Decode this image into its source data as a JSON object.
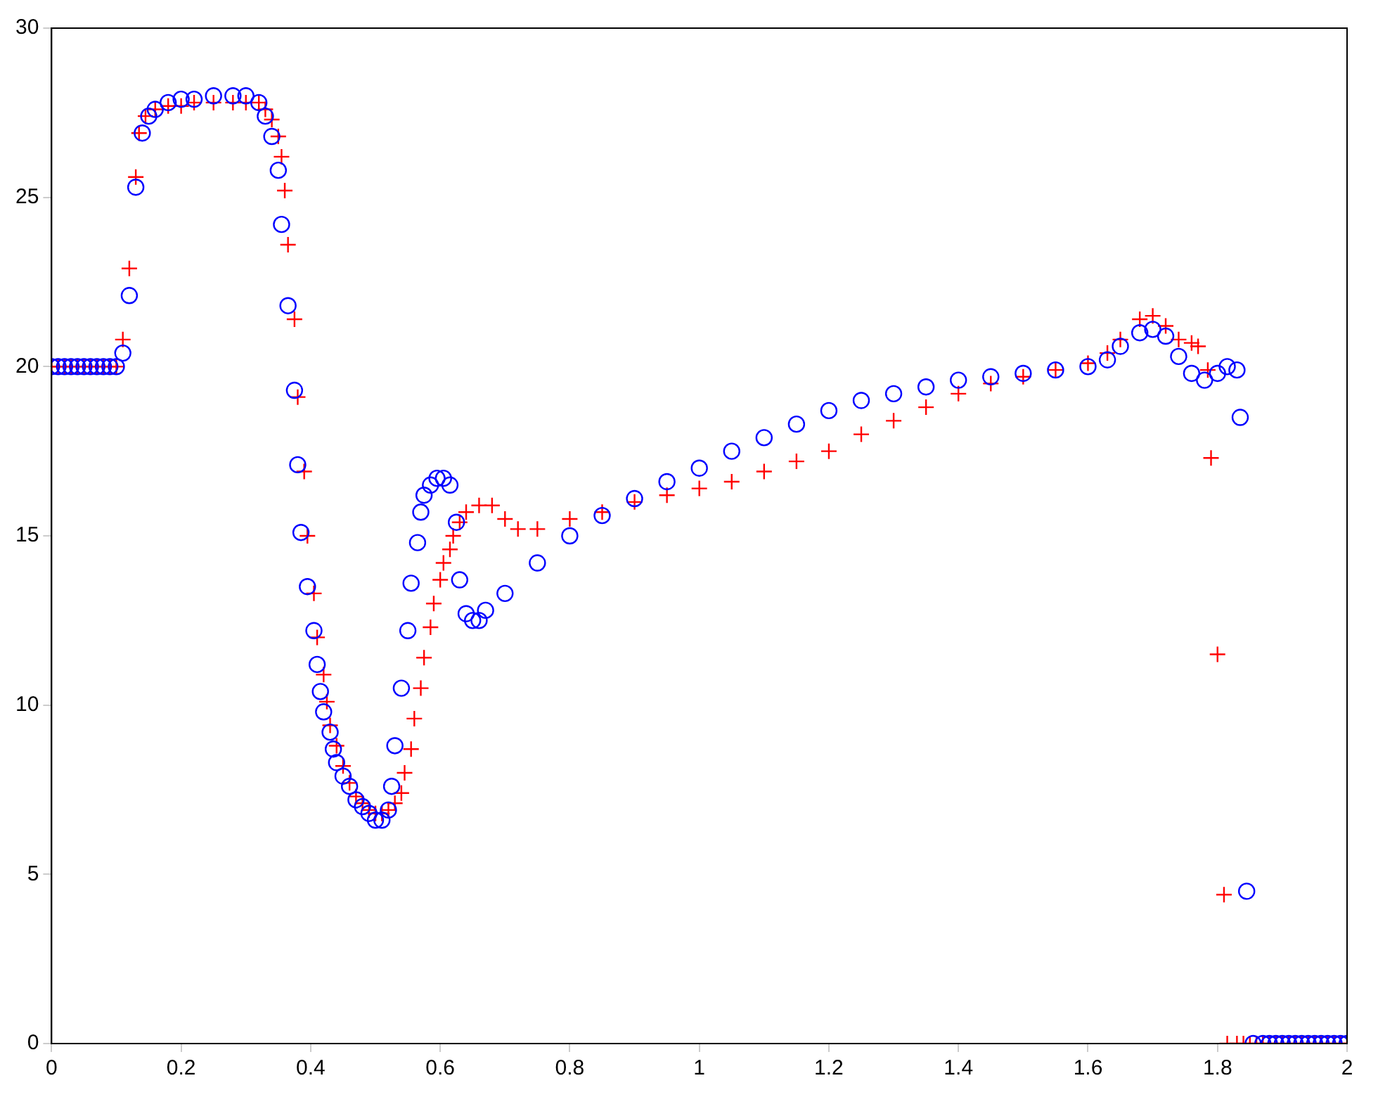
{
  "chart_data": {
    "type": "scatter",
    "xlim": [
      0,
      2
    ],
    "ylim": [
      0,
      30
    ],
    "xticks": [
      0,
      0.2,
      0.4,
      0.6,
      0.8,
      1,
      1.2,
      1.4,
      1.6,
      1.8,
      2
    ],
    "yticks": [
      0,
      5,
      10,
      15,
      20,
      25,
      30
    ],
    "grid": false,
    "legend": false,
    "series": [
      {
        "color": "#0000ff",
        "marker": "circle",
        "x": [
          0,
          0.01,
          0.02,
          0.03,
          0.04,
          0.05,
          0.06,
          0.07,
          0.08,
          0.09,
          0.1,
          0.11,
          0.12,
          0.13,
          0.14,
          0.15,
          0.16,
          0.18,
          0.2,
          0.22,
          0.25,
          0.28,
          0.3,
          0.32,
          0.33,
          0.34,
          0.35,
          0.355,
          0.365,
          0.375,
          0.38,
          0.385,
          0.395,
          0.405,
          0.41,
          0.415,
          0.42,
          0.43,
          0.435,
          0.44,
          0.45,
          0.46,
          0.47,
          0.48,
          0.49,
          0.5,
          0.51,
          0.52,
          0.525,
          0.53,
          0.54,
          0.55,
          0.555,
          0.565,
          0.57,
          0.575,
          0.585,
          0.595,
          0.605,
          0.615,
          0.625,
          0.63,
          0.64,
          0.65,
          0.66,
          0.67,
          0.7,
          0.75,
          0.8,
          0.85,
          0.9,
          0.95,
          1,
          1.05,
          1.1,
          1.15,
          1.2,
          1.25,
          1.3,
          1.35,
          1.4,
          1.45,
          1.5,
          1.55,
          1.6,
          1.63,
          1.65,
          1.68,
          1.7,
          1.72,
          1.74,
          1.76,
          1.78,
          1.8,
          1.815,
          1.83,
          1.835,
          1.845,
          1.855,
          1.87,
          1.88,
          1.89,
          1.9,
          1.91,
          1.92,
          1.93,
          1.94,
          1.95,
          1.96,
          1.97,
          1.98,
          1.99,
          2
        ],
        "values": [
          20,
          20,
          20,
          20,
          20,
          20,
          20,
          20,
          20,
          20,
          20,
          20.4,
          22.1,
          25.3,
          26.9,
          27.4,
          27.6,
          27.8,
          27.9,
          27.9,
          28,
          28,
          28,
          27.8,
          27.4,
          26.8,
          25.8,
          24.2,
          21.8,
          19.3,
          17.1,
          15.1,
          13.5,
          12.2,
          11.2,
          10.4,
          9.8,
          9.2,
          8.7,
          8.3,
          7.9,
          7.6,
          7.2,
          7,
          6.8,
          6.6,
          6.6,
          6.9,
          7.6,
          8.8,
          10.5,
          12.2,
          13.6,
          14.8,
          15.7,
          16.2,
          16.5,
          16.7,
          16.7,
          16.5,
          15.4,
          13.7,
          12.7,
          12.5,
          12.5,
          12.8,
          13.3,
          14.2,
          15,
          15.6,
          16.1,
          16.6,
          17,
          17.5,
          17.9,
          18.3,
          18.7,
          19,
          19.2,
          19.4,
          19.6,
          19.7,
          19.8,
          19.9,
          20,
          20.2,
          20.6,
          21,
          21.1,
          20.9,
          20.3,
          19.8,
          19.6,
          19.8,
          20,
          19.9,
          18.5,
          4.5,
          0,
          0,
          0,
          0,
          0,
          0,
          0,
          0,
          0,
          0,
          0,
          0,
          0,
          0,
          0
        ]
      },
      {
        "color": "#ff0000",
        "marker": "cross",
        "x": [
          0,
          0.01,
          0.02,
          0.03,
          0.04,
          0.05,
          0.06,
          0.07,
          0.08,
          0.09,
          0.1,
          0.11,
          0.12,
          0.13,
          0.135,
          0.145,
          0.16,
          0.18,
          0.2,
          0.22,
          0.25,
          0.28,
          0.3,
          0.32,
          0.33,
          0.34,
          0.35,
          0.355,
          0.36,
          0.365,
          0.375,
          0.38,
          0.39,
          0.395,
          0.405,
          0.41,
          0.42,
          0.425,
          0.43,
          0.44,
          0.45,
          0.46,
          0.47,
          0.48,
          0.49,
          0.5,
          0.51,
          0.52,
          0.53,
          0.54,
          0.545,
          0.555,
          0.56,
          0.57,
          0.575,
          0.585,
          0.59,
          0.6,
          0.605,
          0.615,
          0.62,
          0.63,
          0.64,
          0.66,
          0.68,
          0.7,
          0.72,
          0.75,
          0.8,
          0.85,
          0.9,
          0.95,
          1,
          1.05,
          1.1,
          1.15,
          1.2,
          1.25,
          1.3,
          1.35,
          1.4,
          1.45,
          1.5,
          1.55,
          1.6,
          1.63,
          1.65,
          1.68,
          1.7,
          1.72,
          1.74,
          1.76,
          1.77,
          1.785,
          1.79,
          1.8,
          1.81,
          1.815,
          1.83,
          1.84,
          1.85,
          1.86,
          1.87,
          1.88,
          1.89,
          1.9,
          1.91,
          1.92,
          1.93,
          1.94,
          1.95,
          1.96,
          1.97,
          1.98,
          1.99,
          2
        ],
        "values": [
          20,
          20,
          20,
          20,
          20,
          20,
          20,
          20,
          20,
          20,
          20,
          20.8,
          22.9,
          25.6,
          26.9,
          27.4,
          27.6,
          27.7,
          27.7,
          27.8,
          27.8,
          27.8,
          27.8,
          27.8,
          27.6,
          27.3,
          26.8,
          26.2,
          25.2,
          23.6,
          21.4,
          19.1,
          16.9,
          15,
          13.3,
          12,
          10.9,
          10.1,
          9.4,
          8.8,
          8.2,
          7.7,
          7.3,
          7.1,
          6.9,
          6.8,
          6.8,
          6.9,
          7.1,
          7.4,
          8,
          8.7,
          9.6,
          10.5,
          11.4,
          12.3,
          13,
          13.7,
          14.2,
          14.6,
          15,
          15.4,
          15.7,
          15.9,
          15.9,
          15.5,
          15.2,
          15.2,
          15.5,
          15.7,
          16,
          16.2,
          16.4,
          16.6,
          16.9,
          17.2,
          17.5,
          18,
          18.4,
          18.8,
          19.2,
          19.5,
          19.7,
          19.9,
          20.1,
          20.4,
          20.8,
          21.4,
          21.5,
          21.2,
          20.8,
          20.7,
          20.6,
          19.9,
          17.3,
          11.5,
          4.4,
          0,
          0,
          0,
          0,
          0,
          0,
          0,
          0,
          0,
          0,
          0,
          0,
          0,
          0,
          0,
          0,
          0,
          0,
          0
        ]
      }
    ]
  }
}
